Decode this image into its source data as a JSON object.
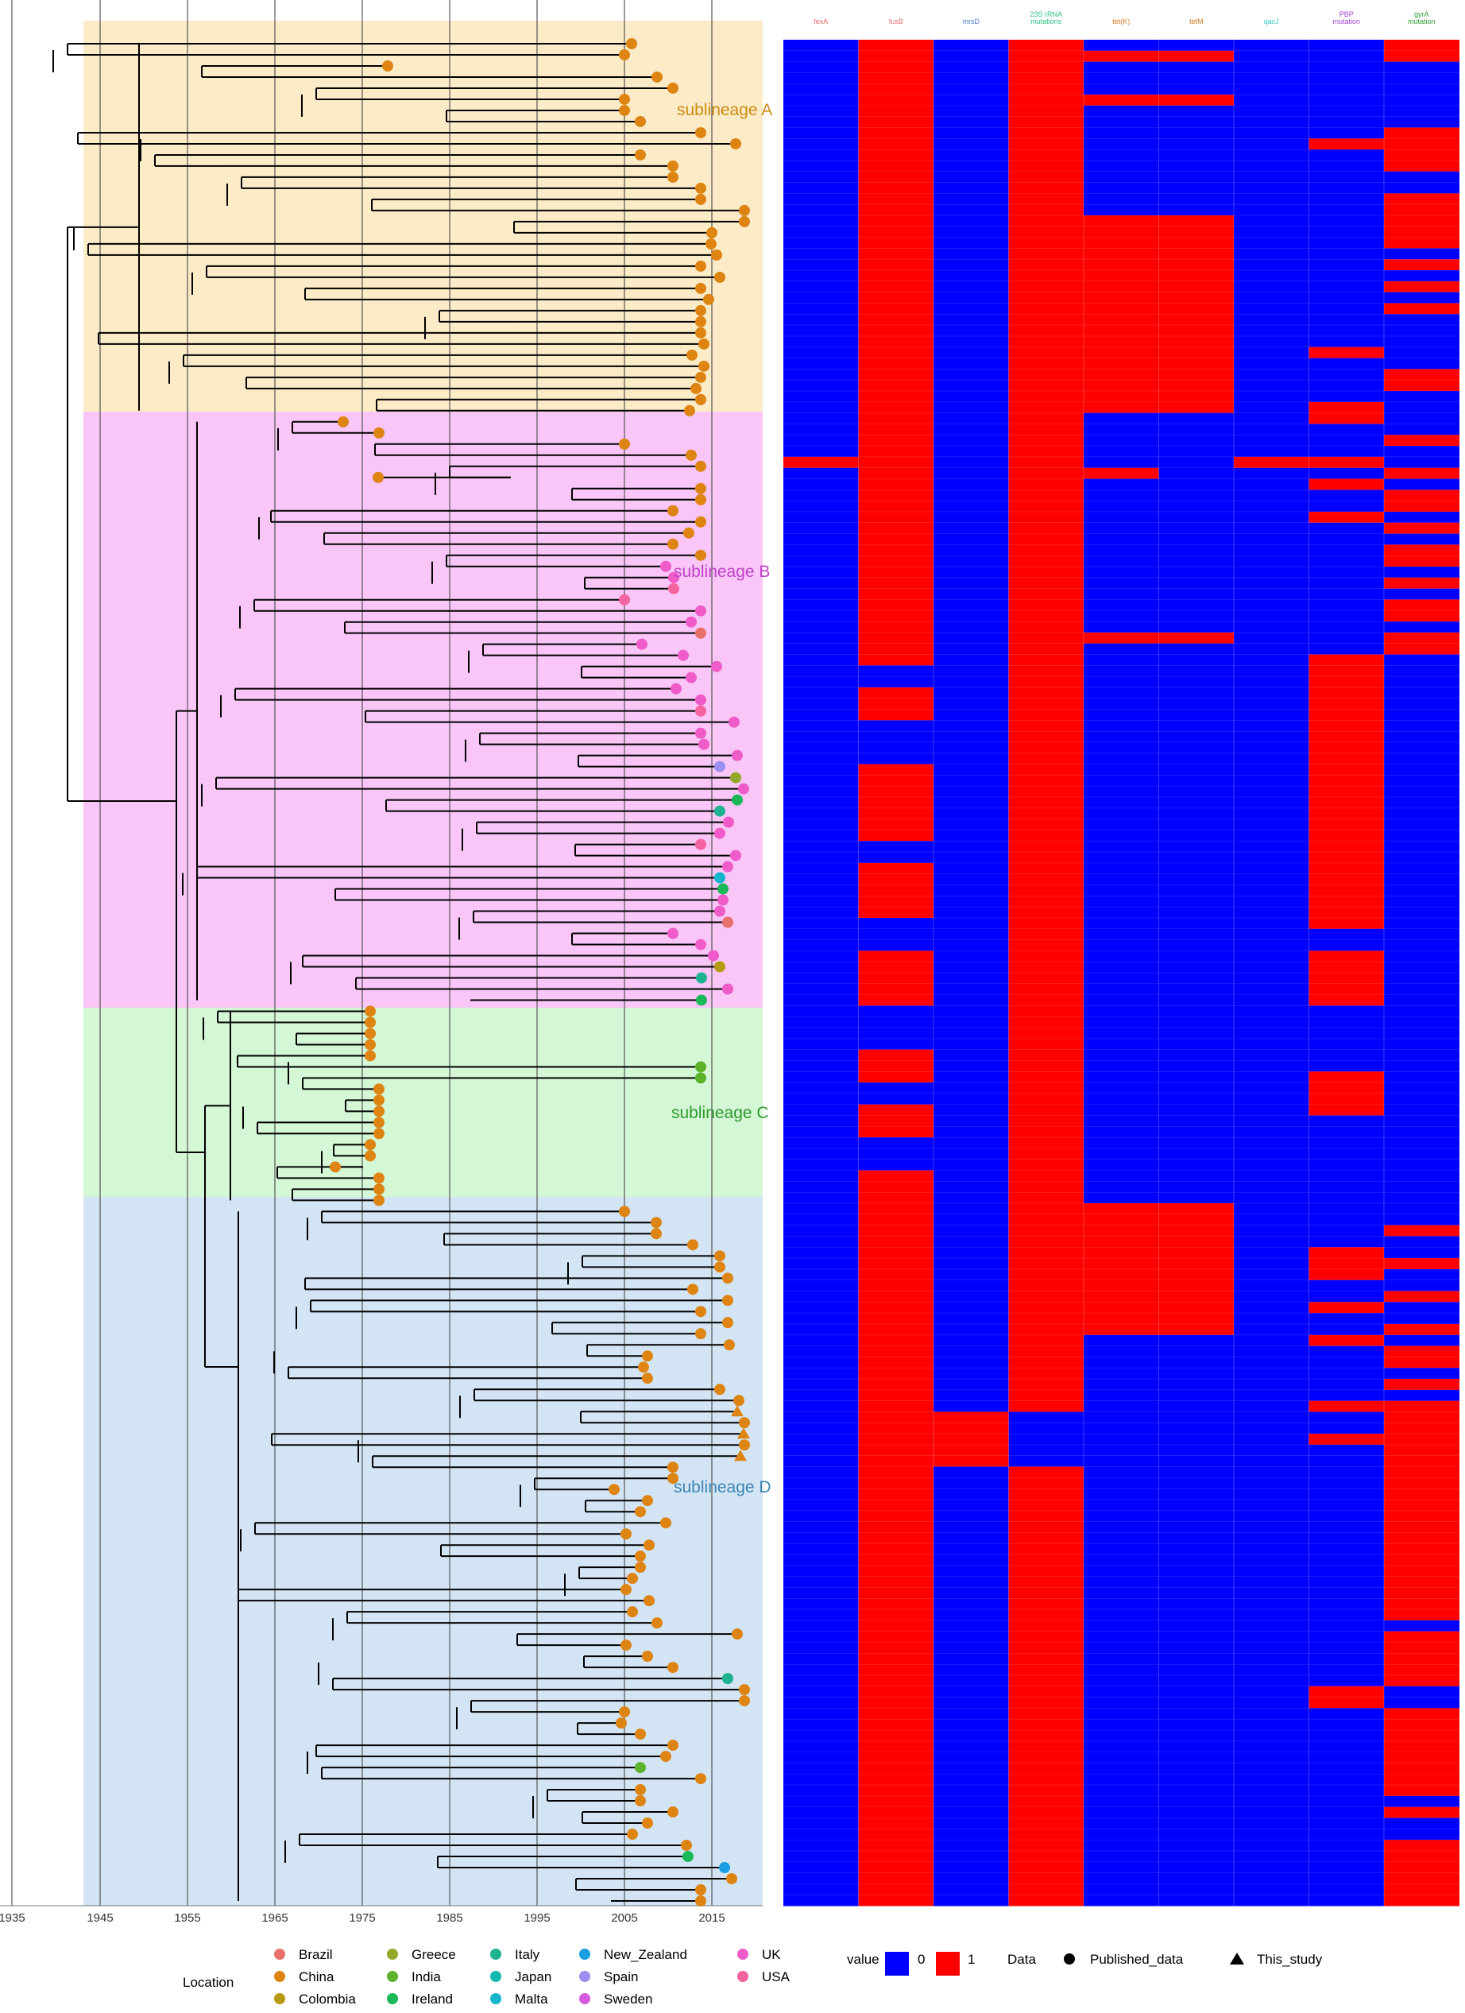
{
  "tree": {
    "years": [
      "1935",
      "1945",
      "1955",
      "1965",
      "1975",
      "1985",
      "1995",
      "2005",
      "2015"
    ],
    "sublineages": [
      {
        "label": "sublineage A",
        "fill": "#fbebc7",
        "text_color": "#cc8a10"
      },
      {
        "label": "sublineage B",
        "fill": "#f9c6f7",
        "text_color": "#c040c8"
      },
      {
        "label": "sublineage C",
        "fill": "#d4f7d6",
        "text_color": "#2e9a2e"
      },
      {
        "label": "sublineage D",
        "fill": "#d3e5f4",
        "text_color": "#3b86b3"
      }
    ]
  },
  "heatmap": {
    "columns": [
      {
        "label": "fexA",
        "color": "#e86a6a"
      },
      {
        "label": "fusB",
        "color": "#e86a6a"
      },
      {
        "label": "mrsD",
        "color": "#4a78d0"
      },
      {
        "label": "23S rRNA mutations",
        "color": "#2bbf7f"
      },
      {
        "label": "tet(K)",
        "color": "#d07a20"
      },
      {
        "label": "tetM",
        "color": "#d07a20"
      },
      {
        "label": "qacJ",
        "color": "#35c8c8"
      },
      {
        "label": "PBP mutation",
        "color": "#a23fd0"
      },
      {
        "label": "gyrA mutation",
        "color": "#2e9a2e"
      }
    ],
    "zero_color": "#0000ff",
    "one_color": "#ff0000"
  },
  "legend": {
    "location_title": "Location",
    "locations": [
      {
        "name": "Brazil",
        "color": "#e8706a"
      },
      {
        "name": "China",
        "color": "#de8412"
      },
      {
        "name": "Colombia",
        "color": "#b79a14"
      },
      {
        "name": "Greece",
        "color": "#94a82c"
      },
      {
        "name": "India",
        "color": "#5cb22a"
      },
      {
        "name": "Ireland",
        "color": "#1ab857"
      },
      {
        "name": "Italy",
        "color": "#1eb28f"
      },
      {
        "name": "Japan",
        "color": "#13b9b0"
      },
      {
        "name": "Malta",
        "color": "#15b5ce"
      },
      {
        "name": "New_Zealand",
        "color": "#1a9de2"
      },
      {
        "name": "Spain",
        "color": "#9b8ef0"
      },
      {
        "name": "Sweden",
        "color": "#d55ae0"
      },
      {
        "name": "UK",
        "color": "#ef5cc9"
      },
      {
        "name": "USA",
        "color": "#f464a0"
      }
    ],
    "value_title": "value",
    "value_items": [
      {
        "label": "0",
        "color": "#0000ff"
      },
      {
        "label": "1",
        "color": "#ff0000"
      }
    ],
    "data_title": "Data",
    "data_items": [
      {
        "label": "Published_data",
        "shape": "circle"
      },
      {
        "label": "This_study",
        "shape": "triangle"
      }
    ]
  }
}
